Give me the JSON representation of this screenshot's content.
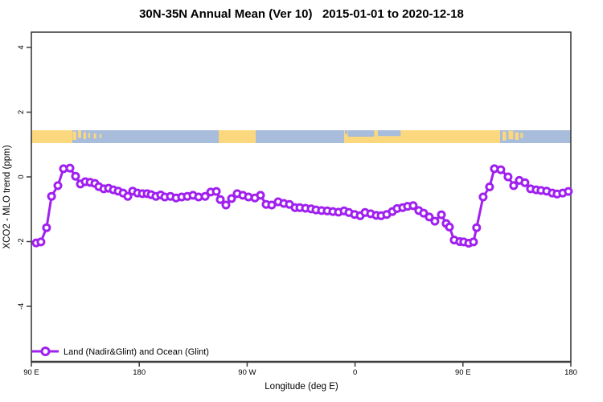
{
  "chart_data": {
    "type": "line",
    "title": "30N-35N Annual Mean (Ver 10)   2015-01-01 to 2020-12-18",
    "xlabel": "Longitude (deg E)",
    "ylabel": "XCO2 - MLO trend (ppm)",
    "xlim": [
      90,
      540
    ],
    "ylim": [
      -5.7,
      4.5
    ],
    "grid": false,
    "x_ticks": [
      {
        "lon": 90,
        "label": "90 E"
      },
      {
        "lon": 180,
        "label": "180"
      },
      {
        "lon": 270,
        "label": "90 W"
      },
      {
        "lon": 360,
        "label": "0"
      },
      {
        "lon": 450,
        "label": "90 E"
      },
      {
        "lon": 540,
        "label": "180"
      }
    ],
    "y_ticks": [
      {
        "value": 4,
        "label": "4"
      },
      {
        "value": 2,
        "label": "2"
      },
      {
        "value": 0,
        "label": "0"
      },
      {
        "value": -2,
        "label": "-2"
      },
      {
        "value": -4,
        "label": "-4"
      }
    ],
    "legend": {
      "position": "bottom-left",
      "label": "Land (Nadir&Glint) and Ocean (Glint)"
    },
    "series": [
      {
        "name": "Land (Nadir&Glint) and Ocean (Glint)",
        "color": "#A020F0",
        "marker": "open-circle",
        "x": [
          94.0,
          98.0,
          102.7,
          106.8,
          112.1,
          116.8,
          122.2,
          126.9,
          130.9,
          134.9,
          139.0,
          143.0,
          146.3,
          150.4,
          154.4,
          158.4,
          162.4,
          166.5,
          170.5,
          174.5,
          178.5,
          182.6,
          186.6,
          189.9,
          193.9,
          197.9,
          201.3,
          206.0,
          210.7,
          215.4,
          220.1,
          224.8,
          229.5,
          234.9,
          239.6,
          244.3,
          247.6,
          252.3,
          257.0,
          261.7,
          266.4,
          271.1,
          276.5,
          281.1,
          285.8,
          290.5,
          295.9,
          300.6,
          305.3,
          310.0,
          314.0,
          318.7,
          323.4,
          327.4,
          332.1,
          336.8,
          341.5,
          346.2,
          350.9,
          354.9,
          359.6,
          364.3,
          368.3,
          373.0,
          377.7,
          381.7,
          386.4,
          391.1,
          395.1,
          399.8,
          403.8,
          408.5,
          413.2,
          417.2,
          421.9,
          426.6,
          432.0,
          436.0,
          438.7,
          442.7,
          447.4,
          450.7,
          454.8,
          458.8,
          461.4,
          466.8,
          472.2,
          476.2,
          481.6,
          487.6,
          492.3,
          497.0,
          501.7,
          506.4,
          511.1,
          515.1,
          519.8,
          524.5,
          528.5,
          533.2,
          537.9
        ],
        "y": [
          -2.04,
          -2.01,
          -1.57,
          -0.6,
          -0.27,
          0.25,
          0.27,
          0.02,
          -0.22,
          -0.15,
          -0.17,
          -0.2,
          -0.3,
          -0.37,
          -0.35,
          -0.4,
          -0.44,
          -0.5,
          -0.6,
          -0.44,
          -0.5,
          -0.52,
          -0.52,
          -0.55,
          -0.6,
          -0.56,
          -0.62,
          -0.6,
          -0.65,
          -0.62,
          -0.6,
          -0.57,
          -0.62,
          -0.6,
          -0.47,
          -0.45,
          -0.7,
          -0.87,
          -0.67,
          -0.52,
          -0.57,
          -0.62,
          -0.65,
          -0.57,
          -0.85,
          -0.87,
          -0.77,
          -0.82,
          -0.85,
          -0.95,
          -0.95,
          -0.97,
          -0.99,
          -1.02,
          -1.04,
          -1.05,
          -1.07,
          -1.09,
          -1.05,
          -1.1,
          -1.16,
          -1.2,
          -1.1,
          -1.14,
          -1.19,
          -1.2,
          -1.16,
          -1.07,
          -0.98,
          -0.95,
          -0.91,
          -0.89,
          -1.04,
          -1.12,
          -1.24,
          -1.37,
          -1.17,
          -1.44,
          -1.55,
          -1.95,
          -2.0,
          -2.01,
          -2.05,
          -2.01,
          -1.57,
          -0.62,
          -0.31,
          0.25,
          0.22,
          0.0,
          -0.27,
          -0.11,
          -0.18,
          -0.37,
          -0.4,
          -0.42,
          -0.44,
          -0.5,
          -0.53,
          -0.5,
          -0.45
        ]
      }
    ],
    "map_strip": {
      "description": "land-ocean mask band 30N-35N",
      "land_color": "#FBD87E",
      "ocean_color": "#A8BCDC",
      "value_top": 1.44,
      "value_bottom": 1.04,
      "land_segments": [
        [
          90,
          124.2
        ],
        [
          246.3,
          277.1
        ],
        [
          350.9,
          481.0
        ]
      ],
      "island_patches": [
        [
          124.5,
          127.5,
          0.1,
          0.75
        ],
        [
          129.0,
          131.5,
          0.0,
          0.6
        ],
        [
          133.5,
          135.5,
          0.15,
          0.7
        ],
        [
          137.5,
          139.0,
          0.2,
          0.6
        ],
        [
          142.0,
          144.0,
          0.25,
          0.65
        ],
        [
          147.0,
          148.5,
          0.3,
          0.6
        ],
        [
          483.0,
          486.0,
          0.1,
          0.8
        ],
        [
          488.0,
          492.0,
          0.05,
          0.7
        ],
        [
          493.5,
          496.5,
          0.15,
          0.75
        ],
        [
          498.0,
          500.0,
          0.2,
          0.6
        ]
      ],
      "sea_patches": [
        [
          351.5,
          353.5,
          0.0,
          0.3
        ],
        [
          354.0,
          376.0,
          0.0,
          0.5
        ],
        [
          379.0,
          398.0,
          0.0,
          0.45
        ]
      ]
    }
  }
}
